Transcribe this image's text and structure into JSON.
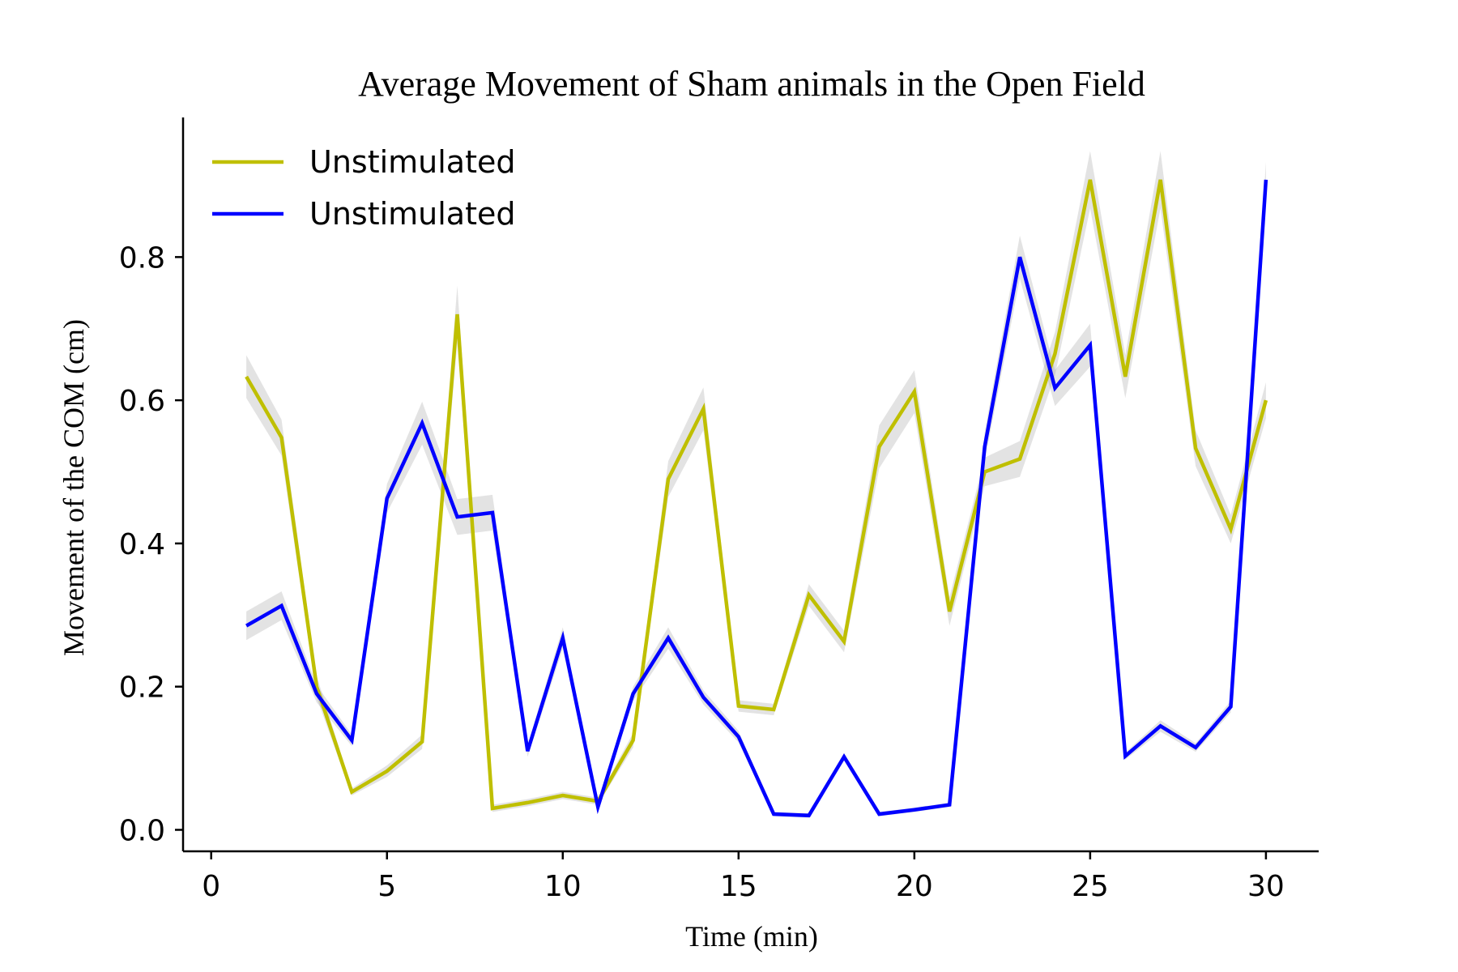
{
  "chart_data": {
    "type": "line",
    "title": "Average Movement of Sham animals in the Open Field",
    "xlabel": "Time (min)",
    "ylabel": "Movement of the COM (cm)",
    "xlim": [
      -0.8,
      31.5
    ],
    "ylim": [
      -0.03,
      0.995
    ],
    "xticks": [
      0,
      5,
      10,
      15,
      20,
      25,
      30
    ],
    "yticks": [
      0.0,
      0.2,
      0.4,
      0.6,
      0.8
    ],
    "xtick_labels": [
      "0",
      "5",
      "10",
      "15",
      "20",
      "25",
      "30"
    ],
    "ytick_labels": [
      "0.0",
      "0.2",
      "0.4",
      "0.6",
      "0.8"
    ],
    "grid": false,
    "legend_position": "top-left",
    "x": [
      1,
      2,
      3,
      4,
      5,
      6,
      7,
      8,
      9,
      10,
      11,
      12,
      13,
      14,
      15,
      16,
      17,
      18,
      19,
      20,
      21,
      22,
      23,
      24,
      25,
      26,
      27,
      28,
      29,
      30
    ],
    "series": [
      {
        "name": "Unstimulated",
        "color": "#bfbf00",
        "values": [
          0.633,
          0.548,
          0.2,
          0.053,
          0.082,
          0.123,
          0.72,
          0.03,
          0.038,
          0.048,
          0.04,
          0.125,
          0.49,
          0.588,
          0.173,
          0.168,
          0.328,
          0.263,
          0.535,
          0.612,
          0.305,
          0.5,
          0.518,
          0.665,
          0.908,
          0.633,
          0.908,
          0.533,
          0.42,
          0.6
        ],
        "band": [
          0.03,
          0.025,
          0.015,
          0.005,
          0.008,
          0.01,
          0.04,
          0.005,
          0.005,
          0.005,
          0.005,
          0.01,
          0.025,
          0.03,
          0.008,
          0.008,
          0.015,
          0.015,
          0.03,
          0.03,
          0.02,
          0.02,
          0.025,
          0.03,
          0.04,
          0.03,
          0.04,
          0.025,
          0.02,
          0.025
        ]
      },
      {
        "name": "Unstimulated",
        "color": "#0000ff",
        "values": [
          0.285,
          0.313,
          0.19,
          0.125,
          0.463,
          0.568,
          0.437,
          0.443,
          0.11,
          0.268,
          0.032,
          0.19,
          0.268,
          0.185,
          0.13,
          0.022,
          0.02,
          0.102,
          0.022,
          0.028,
          0.035,
          0.535,
          0.8,
          0.617,
          0.677,
          0.103,
          0.145,
          0.115,
          0.172,
          0.908
        ],
        "band": [
          0.02,
          0.02,
          0.012,
          0.008,
          0.02,
          0.03,
          0.025,
          0.025,
          0.008,
          0.015,
          0.005,
          0.01,
          0.015,
          0.01,
          0.008,
          0.003,
          0.003,
          0.005,
          0.003,
          0.003,
          0.003,
          0.02,
          0.03,
          0.025,
          0.03,
          0.005,
          0.008,
          0.006,
          0.008,
          0.025
        ]
      }
    ]
  }
}
